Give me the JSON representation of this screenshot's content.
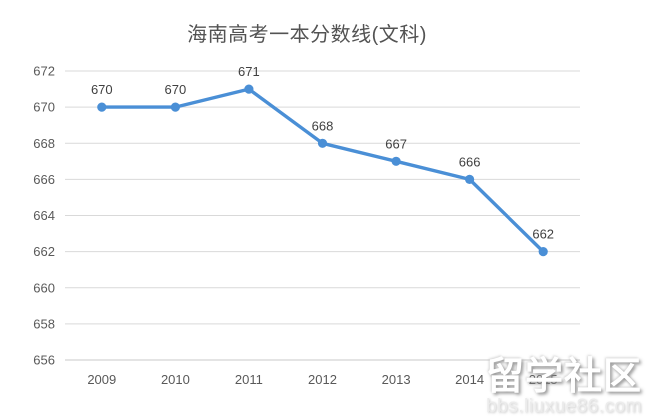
{
  "colors": {
    "series": "#4a8fd6",
    "gridline": "#d9d9d9",
    "axis_line": "#c9c9c9",
    "tick_text": "#595959",
    "data_label_text": "#404040",
    "title_text": "#535353",
    "background": "#ffffff"
  },
  "chart_data": {
    "type": "line",
    "title": "海南高考一本分数线(文科)",
    "categories": [
      "2009",
      "2010",
      "2011",
      "2012",
      "2013",
      "2014",
      "2015"
    ],
    "values": [
      670,
      670,
      671,
      668,
      667,
      666,
      662
    ],
    "xlabel": "",
    "ylabel": "",
    "ylim": [
      656,
      672
    ],
    "ytick_step": 2,
    "grid": true,
    "legend": "none",
    "data_labels": true,
    "marker": "circle"
  },
  "watermark": {
    "brand": "留学社区",
    "site": "bbs.liuxue86.com"
  }
}
